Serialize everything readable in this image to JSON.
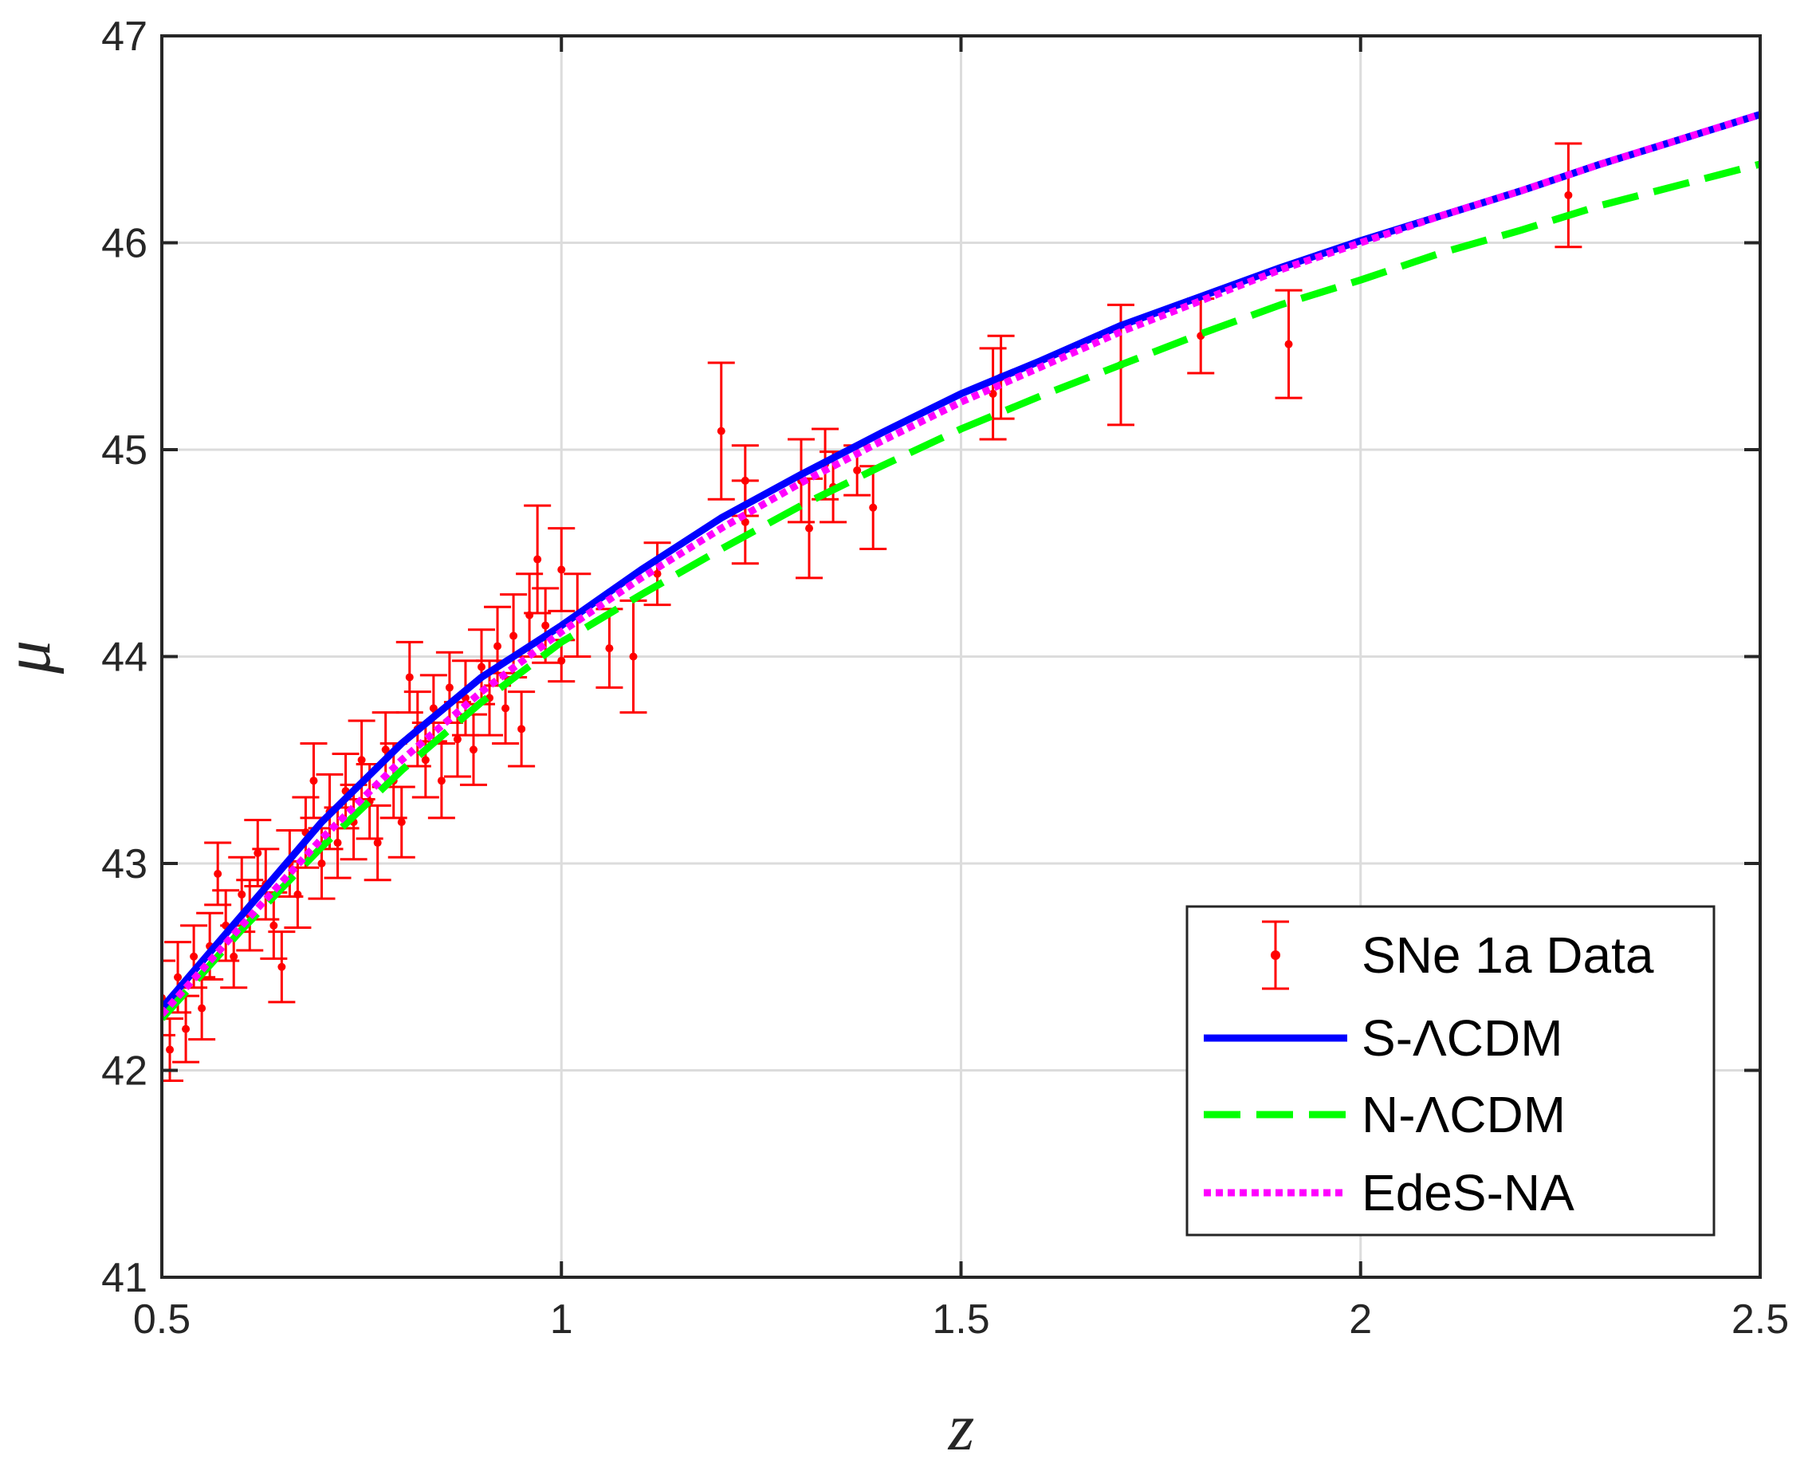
{
  "chart_data": {
    "type": "line",
    "title": "",
    "xlabel": "z",
    "ylabel": "μ",
    "xlim": [
      0.5,
      2.5
    ],
    "ylim": [
      41,
      47
    ],
    "xticks": [
      0.5,
      1,
      1.5,
      2,
      2.5
    ],
    "xtick_labels": [
      "0.5",
      "1",
      "1.5",
      "2",
      "2.5"
    ],
    "yticks": [
      41,
      42,
      43,
      44,
      45,
      46,
      47
    ],
    "ytick_labels": [
      "41",
      "42",
      "43",
      "44",
      "45",
      "46",
      "47"
    ],
    "grid": true,
    "legend_position": "bottom-right",
    "legend": [
      {
        "label": "SNe 1a Data",
        "series": "data"
      },
      {
        "label": "S-ΛCDM",
        "series": "s_lcdm"
      },
      {
        "label": "N-ΛCDM",
        "series": "n_lcdm"
      },
      {
        "label": "EdeS-NA",
        "series": "edes_na"
      }
    ],
    "series": [
      {
        "id": "s_lcdm",
        "name": "S-ΛCDM",
        "color": "#0000ff",
        "style": "solid",
        "x": [
          0.5,
          0.6,
          0.7,
          0.8,
          0.9,
          1.0,
          1.1,
          1.2,
          1.3,
          1.4,
          1.5,
          1.6,
          1.7,
          1.8,
          1.9,
          2.0,
          2.1,
          2.2,
          2.3,
          2.4,
          2.5
        ],
        "y": [
          42.3,
          42.75,
          43.2,
          43.58,
          43.9,
          44.15,
          44.42,
          44.67,
          44.88,
          45.08,
          45.27,
          45.43,
          45.6,
          45.74,
          45.88,
          46.01,
          46.13,
          46.25,
          46.38,
          46.5,
          46.62
        ]
      },
      {
        "id": "n_lcdm",
        "name": "N-ΛCDM",
        "color": "#00ff00",
        "style": "dashed",
        "x": [
          0.5,
          0.6,
          0.7,
          0.8,
          0.9,
          1.0,
          1.1,
          1.2,
          1.3,
          1.4,
          1.5,
          1.6,
          1.7,
          1.8,
          1.9,
          2.0,
          2.1,
          2.2,
          2.3,
          2.4,
          2.5
        ],
        "y": [
          42.25,
          42.68,
          43.08,
          43.45,
          43.78,
          44.07,
          44.3,
          44.52,
          44.73,
          44.92,
          45.1,
          45.26,
          45.41,
          45.56,
          45.7,
          45.82,
          45.95,
          46.06,
          46.18,
          46.28,
          46.38
        ]
      },
      {
        "id": "edes_na",
        "name": "EdeS-NA",
        "color": "#ff00ff",
        "style": "dotted",
        "x": [
          0.5,
          0.6,
          0.7,
          0.8,
          0.9,
          1.0,
          1.1,
          1.2,
          1.3,
          1.4,
          1.5,
          1.6,
          1.7,
          1.8,
          1.9,
          2.0,
          2.1,
          2.2,
          2.3,
          2.4,
          2.5
        ],
        "y": [
          42.27,
          42.7,
          43.12,
          43.5,
          43.83,
          44.12,
          44.38,
          44.62,
          44.84,
          45.04,
          45.23,
          45.4,
          45.57,
          45.72,
          45.87,
          46.0,
          46.13,
          46.25,
          46.38,
          46.5,
          46.62
        ]
      }
    ],
    "data_points": {
      "id": "data",
      "name": "SNe 1a Data",
      "color": "#ff0000",
      "points": [
        {
          "z": 0.5,
          "mu": 42.35,
          "err": 0.18
        },
        {
          "z": 0.51,
          "mu": 42.1,
          "err": 0.15
        },
        {
          "z": 0.52,
          "mu": 42.45,
          "err": 0.17
        },
        {
          "z": 0.53,
          "mu": 42.2,
          "err": 0.16
        },
        {
          "z": 0.54,
          "mu": 42.55,
          "err": 0.15
        },
        {
          "z": 0.55,
          "mu": 42.3,
          "err": 0.15
        },
        {
          "z": 0.56,
          "mu": 42.6,
          "err": 0.16
        },
        {
          "z": 0.57,
          "mu": 42.95,
          "err": 0.15
        },
        {
          "z": 0.58,
          "mu": 42.7,
          "err": 0.17
        },
        {
          "z": 0.59,
          "mu": 42.55,
          "err": 0.15
        },
        {
          "z": 0.6,
          "mu": 42.85,
          "err": 0.18
        },
        {
          "z": 0.61,
          "mu": 42.75,
          "err": 0.17
        },
        {
          "z": 0.62,
          "mu": 43.05,
          "err": 0.16
        },
        {
          "z": 0.63,
          "mu": 42.9,
          "err": 0.17
        },
        {
          "z": 0.64,
          "mu": 42.7,
          "err": 0.16
        },
        {
          "z": 0.65,
          "mu": 42.5,
          "err": 0.17
        },
        {
          "z": 0.66,
          "mu": 43.0,
          "err": 0.16
        },
        {
          "z": 0.67,
          "mu": 42.85,
          "err": 0.16
        },
        {
          "z": 0.68,
          "mu": 43.15,
          "err": 0.17
        },
        {
          "z": 0.69,
          "mu": 43.4,
          "err": 0.18
        },
        {
          "z": 0.7,
          "mu": 43.0,
          "err": 0.17
        },
        {
          "z": 0.71,
          "mu": 43.25,
          "err": 0.18
        },
        {
          "z": 0.72,
          "mu": 43.1,
          "err": 0.17
        },
        {
          "z": 0.73,
          "mu": 43.35,
          "err": 0.18
        },
        {
          "z": 0.74,
          "mu": 43.2,
          "err": 0.18
        },
        {
          "z": 0.75,
          "mu": 43.5,
          "err": 0.19
        },
        {
          "z": 0.76,
          "mu": 43.3,
          "err": 0.18
        },
        {
          "z": 0.77,
          "mu": 43.1,
          "err": 0.18
        },
        {
          "z": 0.78,
          "mu": 43.55,
          "err": 0.18
        },
        {
          "z": 0.79,
          "mu": 43.4,
          "err": 0.18
        },
        {
          "z": 0.8,
          "mu": 43.2,
          "err": 0.17
        },
        {
          "z": 0.81,
          "mu": 43.9,
          "err": 0.17
        },
        {
          "z": 0.82,
          "mu": 43.65,
          "err": 0.18
        },
        {
          "z": 0.83,
          "mu": 43.5,
          "err": 0.18
        },
        {
          "z": 0.84,
          "mu": 43.75,
          "err": 0.16
        },
        {
          "z": 0.85,
          "mu": 43.4,
          "err": 0.18
        },
        {
          "z": 0.86,
          "mu": 43.85,
          "err": 0.17
        },
        {
          "z": 0.87,
          "mu": 43.6,
          "err": 0.18
        },
        {
          "z": 0.88,
          "mu": 43.8,
          "err": 0.18
        },
        {
          "z": 0.89,
          "mu": 43.55,
          "err": 0.17
        },
        {
          "z": 0.9,
          "mu": 43.95,
          "err": 0.18
        },
        {
          "z": 0.91,
          "mu": 43.8,
          "err": 0.18
        },
        {
          "z": 0.92,
          "mu": 44.05,
          "err": 0.19
        },
        {
          "z": 0.93,
          "mu": 43.75,
          "err": 0.17
        },
        {
          "z": 0.94,
          "mu": 44.1,
          "err": 0.2
        },
        {
          "z": 0.95,
          "mu": 43.65,
          "err": 0.18
        },
        {
          "z": 0.96,
          "mu": 44.2,
          "err": 0.2
        },
        {
          "z": 0.97,
          "mu": 44.47,
          "err": 0.26
        },
        {
          "z": 0.98,
          "mu": 44.15,
          "err": 0.18
        },
        {
          "z": 1.0,
          "mu": 43.98,
          "err": 0.1
        },
        {
          "z": 1.0,
          "mu": 44.42,
          "err": 0.2
        },
        {
          "z": 1.02,
          "mu": 44.2,
          "err": 0.2
        },
        {
          "z": 1.06,
          "mu": 44.04,
          "err": 0.19
        },
        {
          "z": 1.09,
          "mu": 44.0,
          "err": 0.27
        },
        {
          "z": 1.12,
          "mu": 44.4,
          "err": 0.15
        },
        {
          "z": 1.2,
          "mu": 45.09,
          "err": 0.33
        },
        {
          "z": 1.23,
          "mu": 44.85,
          "err": 0.17
        },
        {
          "z": 1.23,
          "mu": 44.65,
          "err": 0.2
        },
        {
          "z": 1.3,
          "mu": 44.85,
          "err": 0.2
        },
        {
          "z": 1.31,
          "mu": 44.62,
          "err": 0.24
        },
        {
          "z": 1.33,
          "mu": 44.93,
          "err": 0.17
        },
        {
          "z": 1.34,
          "mu": 44.82,
          "err": 0.17
        },
        {
          "z": 1.37,
          "mu": 44.9,
          "err": 0.12
        },
        {
          "z": 1.39,
          "mu": 44.72,
          "err": 0.2
        },
        {
          "z": 1.54,
          "mu": 45.27,
          "err": 0.22
        },
        {
          "z": 1.55,
          "mu": 45.35,
          "err": 0.2
        },
        {
          "z": 1.7,
          "mu": 45.41,
          "err": 0.29
        },
        {
          "z": 1.8,
          "mu": 45.55,
          "err": 0.18
        },
        {
          "z": 1.91,
          "mu": 45.51,
          "err": 0.26
        },
        {
          "z": 2.26,
          "mu": 46.23,
          "err": 0.25
        }
      ]
    }
  }
}
